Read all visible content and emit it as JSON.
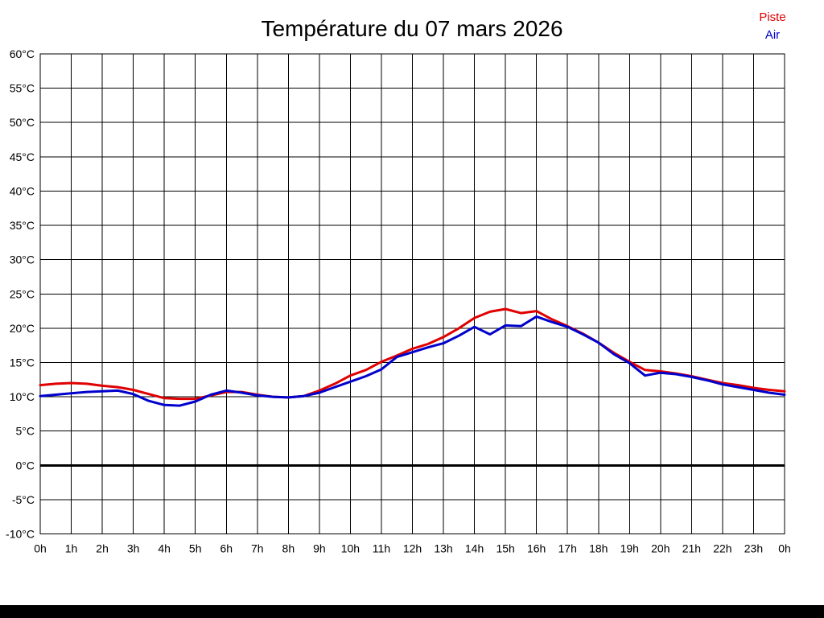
{
  "header": {
    "title": "Température du 07 mars 2026"
  },
  "legend": {
    "items": [
      {
        "label": "Piste",
        "color": "#e00000"
      },
      {
        "label": "Air",
        "color": "#0000cc"
      }
    ]
  },
  "chart_data": {
    "type": "line",
    "title": "Température du 07 mars 2026",
    "xlabel": "",
    "ylabel": "",
    "x_unit": "hours",
    "y_unit": "°C",
    "xlim": [
      0,
      24
    ],
    "ylim": [
      -10,
      60
    ],
    "grid": true,
    "grid_color": "#000000",
    "zero_line": true,
    "legend_position": "top-right",
    "x": [
      0,
      0.5,
      1,
      1.5,
      2,
      2.5,
      3,
      3.5,
      4,
      4.5,
      5,
      5.5,
      6,
      6.5,
      7,
      7.5,
      8,
      8.5,
      9,
      9.5,
      10,
      10.5,
      11,
      11.5,
      12,
      12.5,
      13,
      13.5,
      14,
      14.5,
      15,
      15.5,
      16,
      16.5,
      17,
      17.5,
      18,
      18.5,
      19,
      19.5,
      20,
      20.5,
      21,
      21.5,
      22,
      22.5,
      23,
      23.5,
      24
    ],
    "series": [
      {
        "name": "Piste",
        "id": "piste-line",
        "color": "#e00000",
        "values": [
          11.7,
          11.9,
          12.0,
          11.9,
          11.6,
          11.4,
          11.0,
          10.4,
          9.8,
          9.7,
          9.7,
          10.2,
          10.7,
          10.7,
          10.3,
          10.0,
          9.9,
          10.1,
          10.9,
          11.9,
          13.1,
          13.9,
          15.1,
          16.0,
          17.0,
          17.7,
          18.7,
          20.0,
          21.5,
          22.4,
          22.8,
          22.2,
          22.5,
          21.3,
          20.3,
          19.2,
          17.9,
          16.4,
          15.1,
          13.9,
          13.7,
          13.4,
          13.0,
          12.5,
          12.0,
          11.7,
          11.3,
          11.0,
          10.8
        ]
      },
      {
        "name": "Air",
        "id": "air-line",
        "color": "#0000cc",
        "values": [
          10.1,
          10.3,
          10.5,
          10.7,
          10.8,
          10.9,
          10.4,
          9.4,
          8.8,
          8.7,
          9.3,
          10.3,
          10.9,
          10.6,
          10.2,
          10.0,
          9.9,
          10.1,
          10.6,
          11.4,
          12.2,
          13.0,
          14.0,
          15.8,
          16.5,
          17.2,
          17.8,
          18.9,
          20.2,
          19.1,
          20.4,
          20.3,
          21.7,
          20.9,
          20.2,
          19.1,
          17.9,
          16.2,
          14.9,
          13.1,
          13.5,
          13.3,
          12.9,
          12.4,
          11.8,
          11.4,
          11.0,
          10.6,
          10.3
        ]
      }
    ],
    "x_ticks": [
      {
        "v": 0,
        "label": "0h"
      },
      {
        "v": 1,
        "label": "1h"
      },
      {
        "v": 2,
        "label": "2h"
      },
      {
        "v": 3,
        "label": "3h"
      },
      {
        "v": 4,
        "label": "4h"
      },
      {
        "v": 5,
        "label": "5h"
      },
      {
        "v": 6,
        "label": "6h"
      },
      {
        "v": 7,
        "label": "7h"
      },
      {
        "v": 8,
        "label": "8h"
      },
      {
        "v": 9,
        "label": "9h"
      },
      {
        "v": 10,
        "label": "10h"
      },
      {
        "v": 11,
        "label": "11h"
      },
      {
        "v": 12,
        "label": "12h"
      },
      {
        "v": 13,
        "label": "13h"
      },
      {
        "v": 14,
        "label": "14h"
      },
      {
        "v": 15,
        "label": "15h"
      },
      {
        "v": 16,
        "label": "16h"
      },
      {
        "v": 17,
        "label": "17h"
      },
      {
        "v": 18,
        "label": "18h"
      },
      {
        "v": 19,
        "label": "19h"
      },
      {
        "v": 20,
        "label": "20h"
      },
      {
        "v": 21,
        "label": "21h"
      },
      {
        "v": 22,
        "label": "22h"
      },
      {
        "v": 23,
        "label": "23h"
      },
      {
        "v": 24,
        "label": "0h"
      }
    ],
    "y_ticks": [
      {
        "v": 60,
        "label": "60°C"
      },
      {
        "v": 55,
        "label": "55°C"
      },
      {
        "v": 50,
        "label": "50°C"
      },
      {
        "v": 45,
        "label": "45°C"
      },
      {
        "v": 40,
        "label": "40°C"
      },
      {
        "v": 35,
        "label": "35°C"
      },
      {
        "v": 30,
        "label": "30°C"
      },
      {
        "v": 25,
        "label": "25°C"
      },
      {
        "v": 20,
        "label": "20°C"
      },
      {
        "v": 15,
        "label": "15°C"
      },
      {
        "v": 10,
        "label": "10°C"
      },
      {
        "v": 5,
        "label": "5°C"
      },
      {
        "v": 0,
        "label": "0°C"
      },
      {
        "v": -5,
        "label": "-5°C"
      },
      {
        "v": -10,
        "label": "-10°C"
      }
    ]
  }
}
